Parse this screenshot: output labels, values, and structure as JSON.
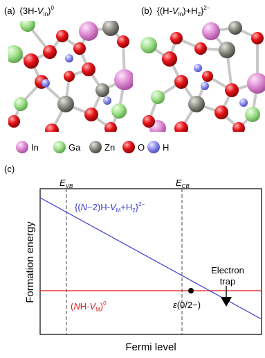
{
  "panel_a": {
    "letter": "(a)",
    "formula_prefix": "(3H-",
    "formula_var": "V",
    "formula_sub": "In",
    "formula_close": ")",
    "formula_sup": "0"
  },
  "panel_b": {
    "letter": "(b)",
    "formula_prefix": "{(H-",
    "formula_var": "V",
    "formula_sub": "In",
    "formula_close": ")+H",
    "formula_sub2": "2",
    "formula_brace": "}",
    "formula_sup": "2−"
  },
  "legend": [
    {
      "label": "In",
      "color": "#dc8ad2"
    },
    {
      "label": "Ga",
      "color": "#9fe08a"
    },
    {
      "label": "Zn",
      "color": "#8a8a82"
    },
    {
      "label": "O",
      "color": "#e8141a"
    },
    {
      "label": "H",
      "color": "#8c8cf0"
    }
  ],
  "panel_c": {
    "letter": "(c)",
    "evb_main": "E",
    "evb_sub": "VB",
    "ecb_main": "E",
    "ecb_sub": "CB",
    "ylabel": "Formation energy",
    "xlabel": "Fermi level",
    "blue_label": {
      "p1": "{(",
      "n": "N",
      "p2": "−2)H-",
      "v": "V",
      "vsub": "M",
      "p3": "+H",
      "h2sub": "2",
      "p4": "}",
      "sup": "2−"
    },
    "red_label": {
      "p1": "(",
      "n": "N",
      "p2": "H-",
      "v": "V",
      "vsub": "M",
      "p3": ")",
      "sup": "0"
    },
    "transition": {
      "eps": "ε",
      "rest": "(0/2−)"
    },
    "trap_line1": "Electron",
    "trap_line2": "trap",
    "colors": {
      "blue": "#3a3ad0",
      "red": "#e01818"
    }
  }
}
